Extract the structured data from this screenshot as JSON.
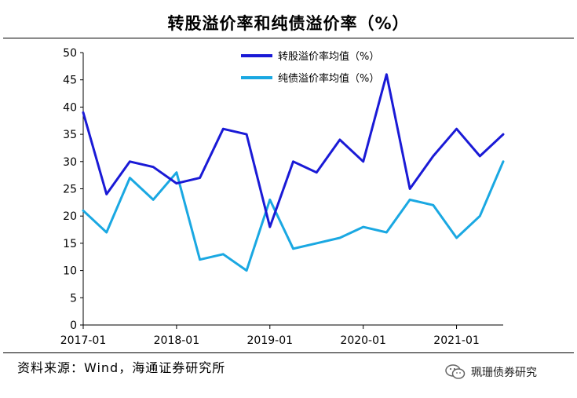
{
  "header": {
    "title": "转股溢价率和纯债溢价率（%）"
  },
  "footer": {
    "source": "资料来源：Wind，海通证券研究所",
    "brand": "珮珊债券研究"
  },
  "icons": {
    "brand_icon": "wechat-icon"
  },
  "chart_data": {
    "type": "line",
    "title": "转股溢价率和纯债溢价率（%）",
    "xlabel": "",
    "ylabel": "",
    "x": [
      "2017-01",
      "2017-04",
      "2017-07",
      "2017-10",
      "2018-01",
      "2018-04",
      "2018-07",
      "2018-10",
      "2019-01",
      "2019-04",
      "2019-07",
      "2019-10",
      "2020-01",
      "2020-04",
      "2020-07",
      "2020-10",
      "2021-01",
      "2021-04",
      "2021-07"
    ],
    "x_ticks": [
      "2017-01",
      "2018-01",
      "2019-01",
      "2020-01",
      "2021-01"
    ],
    "ylim": [
      0,
      50
    ],
    "y_ticks": [
      0,
      5,
      10,
      15,
      20,
      25,
      30,
      35,
      40,
      45,
      50
    ],
    "legend_position": "top-center",
    "grid": false,
    "series": [
      {
        "name": "转股溢价率均值（%）",
        "color": "#1a1ad6",
        "values": [
          39,
          24,
          30,
          29,
          26,
          27,
          36,
          35,
          18,
          30,
          28,
          34,
          30,
          46,
          25,
          31,
          36,
          31,
          35
        ]
      },
      {
        "name": "纯债溢价率均值（%）",
        "color": "#1aa8e2",
        "values": [
          21,
          17,
          27,
          23,
          28,
          12,
          13,
          10,
          23,
          14,
          15,
          16,
          18,
          17,
          23,
          22,
          16,
          20,
          30
        ]
      }
    ]
  }
}
